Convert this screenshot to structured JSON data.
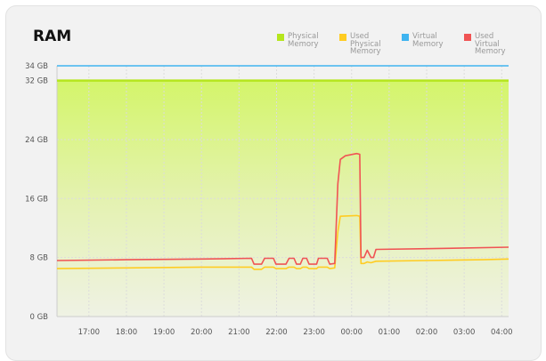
{
  "title": "RAM",
  "chart_data": {
    "type": "line",
    "title": "RAM",
    "xlabel": "",
    "ylabel": "",
    "x_ticks": [
      "17:00",
      "18:00",
      "19:00",
      "20:00",
      "21:00",
      "22:00",
      "23:00",
      "00:00",
      "01:00",
      "02:00",
      "03:00",
      "04:00"
    ],
    "x_range": [
      "16:09",
      "04:11"
    ],
    "y_ticks": [
      {
        "value": 0,
        "label": "0 GB"
      },
      {
        "value": 8,
        "label": "8 GB"
      },
      {
        "value": 16,
        "label": "16 GB"
      },
      {
        "value": 24,
        "label": "24 GB"
      },
      {
        "value": 32,
        "label": "32 GB"
      },
      {
        "value": 34,
        "label": "34 GB"
      }
    ],
    "ylim": [
      0,
      34
    ],
    "grid": true,
    "legend_position": "top-right",
    "series": [
      {
        "name": "Physical Memory",
        "color": "#b5e61d",
        "fill": true,
        "points": [
          [
            "16:09",
            32
          ],
          [
            "04:11",
            32
          ]
        ]
      },
      {
        "name": "Used Physical Memory",
        "color": "#ffcc22",
        "points": [
          [
            "16:09",
            6.5
          ],
          [
            "18:00",
            6.6
          ],
          [
            "20:00",
            6.7
          ],
          [
            "21:20",
            6.7
          ],
          [
            "21:24",
            6.4
          ],
          [
            "21:36",
            6.4
          ],
          [
            "21:41",
            6.7
          ],
          [
            "21:55",
            6.7
          ],
          [
            "21:59",
            6.5
          ],
          [
            "22:15",
            6.5
          ],
          [
            "22:20",
            6.7
          ],
          [
            "22:28",
            6.7
          ],
          [
            "22:32",
            6.5
          ],
          [
            "22:38",
            6.5
          ],
          [
            "22:42",
            6.7
          ],
          [
            "22:48",
            6.7
          ],
          [
            "22:52",
            6.5
          ],
          [
            "23:04",
            6.5
          ],
          [
            "23:07",
            6.7
          ],
          [
            "23:21",
            6.7
          ],
          [
            "23:25",
            6.5
          ],
          [
            "23:33",
            6.6
          ],
          [
            "23:38",
            11.5
          ],
          [
            "23:42",
            13.6
          ],
          [
            "00:08",
            13.7
          ],
          [
            "00:13",
            13.6
          ],
          [
            "00:15",
            7.2
          ],
          [
            "00:20",
            7.2
          ],
          [
            "00:25",
            7.4
          ],
          [
            "00:31",
            7.3
          ],
          [
            "00:39",
            7.5
          ],
          [
            "02:00",
            7.6
          ],
          [
            "03:30",
            7.7
          ],
          [
            "04:11",
            7.8
          ]
        ]
      },
      {
        "name": "Virtual Memory",
        "color": "#3fb4f0",
        "points": [
          [
            "16:09",
            34
          ],
          [
            "04:11",
            34
          ]
        ]
      },
      {
        "name": "Used Virtual Memory",
        "color": "#f05454",
        "points": [
          [
            "16:09",
            7.6
          ],
          [
            "18:00",
            7.7
          ],
          [
            "20:00",
            7.8
          ],
          [
            "21:20",
            7.9
          ],
          [
            "21:24",
            7.1
          ],
          [
            "21:36",
            7.1
          ],
          [
            "21:41",
            7.9
          ],
          [
            "21:55",
            7.9
          ],
          [
            "21:59",
            7.1
          ],
          [
            "22:15",
            7.1
          ],
          [
            "22:20",
            7.9
          ],
          [
            "22:28",
            7.9
          ],
          [
            "22:32",
            7.1
          ],
          [
            "22:38",
            7.1
          ],
          [
            "22:42",
            7.9
          ],
          [
            "22:48",
            7.9
          ],
          [
            "22:52",
            7.1
          ],
          [
            "23:04",
            7.1
          ],
          [
            "23:07",
            7.9
          ],
          [
            "23:21",
            7.9
          ],
          [
            "23:25",
            7.1
          ],
          [
            "23:33",
            7.2
          ],
          [
            "23:38",
            18
          ],
          [
            "23:42",
            21.3
          ],
          [
            "23:50",
            21.8
          ],
          [
            "00:08",
            22.1
          ],
          [
            "00:13",
            22.0
          ],
          [
            "00:15",
            8.0
          ],
          [
            "00:20",
            8.0
          ],
          [
            "00:25",
            9.0
          ],
          [
            "00:31",
            8.0
          ],
          [
            "00:35",
            8.0
          ],
          [
            "00:39",
            9.1
          ],
          [
            "02:00",
            9.2
          ],
          [
            "04:11",
            9.4
          ]
        ]
      }
    ]
  }
}
